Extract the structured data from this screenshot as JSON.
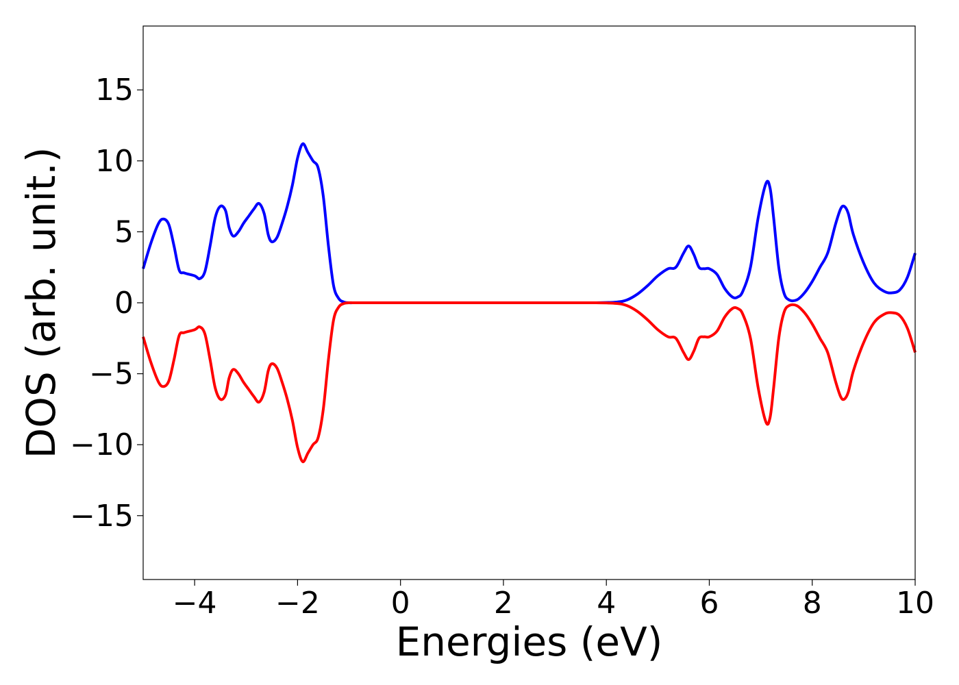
{
  "chart_data": {
    "type": "line",
    "title": "",
    "xlabel": "Energies (eV)",
    "ylabel": "DOS (arb. unit.)",
    "xlim": [
      -5,
      10
    ],
    "ylim": [
      -19.5,
      19.5
    ],
    "x_ticks": [
      -4,
      -2,
      0,
      2,
      4,
      6,
      8,
      10
    ],
    "y_ticks": [
      -15,
      -10,
      -5,
      0,
      5,
      10,
      15
    ],
    "x_tick_labels": [
      "−4",
      "−2",
      "0",
      "2",
      "4",
      "6",
      "8",
      "10"
    ],
    "y_tick_labels": [
      "−15",
      "−10",
      "−5",
      "0",
      "5",
      "10",
      "15"
    ],
    "grid": false,
    "legend": "none",
    "series": [
      {
        "color": "#0000ff",
        "x": [
          -5.0,
          -4.85,
          -4.7,
          -4.6,
          -4.5,
          -4.4,
          -4.3,
          -4.2,
          -4.0,
          -3.9,
          -3.8,
          -3.7,
          -3.6,
          -3.5,
          -3.4,
          -3.33,
          -3.25,
          -3.15,
          -3.05,
          -2.95,
          -2.85,
          -2.75,
          -2.65,
          -2.57,
          -2.5,
          -2.4,
          -2.3,
          -2.2,
          -2.1,
          -2.0,
          -1.9,
          -1.8,
          -1.7,
          -1.6,
          -1.5,
          -1.4,
          -1.3,
          -1.2,
          -1.1,
          -1.0,
          -0.9,
          -0.8,
          -0.7,
          -0.6,
          -0.5,
          0.0,
          1.0,
          2.0,
          3.0,
          3.8,
          4.2,
          4.4,
          4.6,
          4.8,
          5.0,
          5.2,
          5.35,
          5.5,
          5.6,
          5.7,
          5.8,
          5.9,
          6.0,
          6.15,
          6.3,
          6.45,
          6.55,
          6.65,
          6.8,
          6.95,
          7.1,
          7.18,
          7.25,
          7.35,
          7.45,
          7.55,
          7.7,
          7.85,
          8.0,
          8.15,
          8.3,
          8.45,
          8.55,
          8.62,
          8.7,
          8.8,
          9.0,
          9.2,
          9.4,
          9.55,
          9.7,
          9.85,
          10.0
        ],
        "values": [
          2.4,
          4.2,
          5.6,
          5.9,
          5.5,
          4.0,
          2.3,
          2.1,
          1.9,
          1.7,
          2.2,
          4.0,
          6.0,
          6.8,
          6.5,
          5.3,
          4.7,
          5.0,
          5.6,
          6.1,
          6.6,
          7.0,
          6.3,
          4.8,
          4.3,
          4.6,
          5.6,
          6.8,
          8.3,
          10.2,
          11.2,
          10.6,
          10.0,
          9.5,
          7.5,
          4.0,
          1.2,
          0.3,
          0.05,
          0.0,
          0.0,
          0.0,
          0.0,
          0.0,
          0.0,
          0.0,
          0.0,
          0.0,
          0.0,
          0.0,
          0.05,
          0.2,
          0.6,
          1.2,
          1.9,
          2.4,
          2.5,
          3.5,
          4.0,
          3.4,
          2.5,
          2.4,
          2.4,
          2.0,
          1.0,
          0.4,
          0.4,
          0.8,
          2.5,
          6.0,
          8.4,
          8.1,
          6.0,
          2.5,
          0.7,
          0.2,
          0.2,
          0.7,
          1.5,
          2.5,
          3.5,
          5.5,
          6.6,
          6.8,
          6.3,
          4.8,
          2.8,
          1.4,
          0.8,
          0.7,
          0.9,
          1.8,
          3.5
        ]
      },
      {
        "color": "#ff0000",
        "x": [
          -5.0,
          -4.85,
          -4.7,
          -4.6,
          -4.5,
          -4.4,
          -4.3,
          -4.2,
          -4.0,
          -3.9,
          -3.8,
          -3.7,
          -3.6,
          -3.5,
          -3.4,
          -3.33,
          -3.25,
          -3.15,
          -3.05,
          -2.95,
          -2.85,
          -2.75,
          -2.65,
          -2.57,
          -2.5,
          -2.4,
          -2.3,
          -2.2,
          -2.1,
          -2.0,
          -1.9,
          -1.8,
          -1.7,
          -1.6,
          -1.5,
          -1.4,
          -1.3,
          -1.2,
          -1.1,
          -1.0,
          -0.9,
          -0.8,
          -0.7,
          -0.6,
          -0.5,
          0.0,
          1.0,
          2.0,
          3.0,
          3.8,
          4.2,
          4.4,
          4.6,
          4.8,
          5.0,
          5.2,
          5.35,
          5.5,
          5.6,
          5.7,
          5.8,
          5.9,
          6.0,
          6.15,
          6.3,
          6.45,
          6.55,
          6.65,
          6.8,
          6.95,
          7.1,
          7.18,
          7.25,
          7.35,
          7.45,
          7.55,
          7.7,
          7.85,
          8.0,
          8.15,
          8.3,
          8.45,
          8.55,
          8.62,
          8.7,
          8.8,
          9.0,
          9.2,
          9.4,
          9.55,
          9.7,
          9.85,
          10.0
        ],
        "values": [
          -2.4,
          -4.2,
          -5.6,
          -5.9,
          -5.5,
          -4.0,
          -2.3,
          -2.1,
          -1.9,
          -1.7,
          -2.2,
          -4.0,
          -6.0,
          -6.8,
          -6.5,
          -5.3,
          -4.7,
          -5.0,
          -5.6,
          -6.1,
          -6.6,
          -7.0,
          -6.3,
          -4.8,
          -4.3,
          -4.6,
          -5.6,
          -6.8,
          -8.3,
          -10.2,
          -11.2,
          -10.6,
          -10.0,
          -9.5,
          -7.5,
          -4.0,
          -1.2,
          -0.3,
          -0.05,
          0.0,
          0.0,
          0.0,
          0.0,
          0.0,
          0.0,
          0.0,
          0.0,
          0.0,
          0.0,
          0.0,
          -0.05,
          -0.2,
          -0.6,
          -1.2,
          -1.9,
          -2.4,
          -2.5,
          -3.5,
          -4.0,
          -3.4,
          -2.5,
          -2.4,
          -2.4,
          -2.0,
          -1.0,
          -0.4,
          -0.4,
          -0.8,
          -2.5,
          -6.0,
          -8.4,
          -8.1,
          -6.0,
          -2.5,
          -0.7,
          -0.2,
          -0.2,
          -0.7,
          -1.5,
          -2.5,
          -3.5,
          -5.5,
          -6.6,
          -6.8,
          -6.3,
          -4.8,
          -2.8,
          -1.4,
          -0.8,
          -0.7,
          -0.9,
          -1.8,
          -3.5
        ]
      }
    ]
  }
}
